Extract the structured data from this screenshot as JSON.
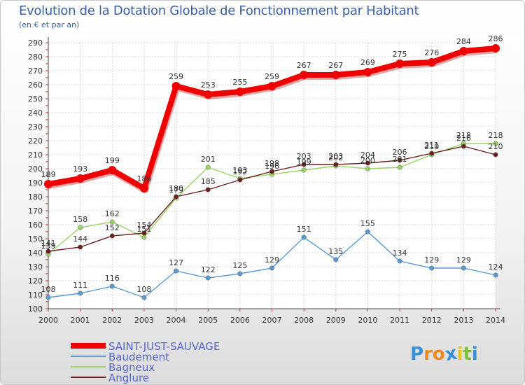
{
  "header": {
    "title": "Evolution de la Dotation Globale de Fonctionnement par Habitant",
    "subtitle": "(en € et par an)"
  },
  "logo": {
    "text": "Proxiti",
    "letters": [
      "P",
      "r",
      "o",
      "x",
      "i",
      "t",
      "i"
    ],
    "colors": [
      "#3a8fd9",
      "#f08a1c",
      "#f08a1c",
      "#3a8fd9",
      "#f0c21c",
      "#7fbf3f",
      "#3a8fd9"
    ]
  },
  "chart_data": {
    "type": "line",
    "title": "Evolution de la Dotation Globale de Fonctionnement par Habitant",
    "subtitle": "(en € et par an)",
    "xlabel": "",
    "ylabel": "",
    "x": [
      "2000",
      "2001",
      "2002",
      "2003",
      "2004",
      "2005",
      "2006",
      "2007",
      "2008",
      "2009",
      "2010",
      "2011",
      "2012",
      "2013",
      "2014"
    ],
    "ylim": [
      100,
      290
    ],
    "yticks": [
      100,
      110,
      120,
      130,
      140,
      150,
      160,
      170,
      180,
      190,
      200,
      210,
      220,
      230,
      240,
      250,
      260,
      270,
      280,
      290
    ],
    "grid": true,
    "legend_position": "bottom-left",
    "series": [
      {
        "name": "SAINT-JUST-SAUVAGE",
        "color": "#ee0000",
        "emphasis": true,
        "values": [
          189,
          193,
          199,
          186,
          259,
          253,
          255,
          259,
          267,
          267,
          269,
          275,
          276,
          284,
          286
        ]
      },
      {
        "name": "Baudement",
        "color": "#5b9bd5",
        "emphasis": false,
        "values": [
          108,
          111,
          116,
          108,
          127,
          122,
          125,
          129,
          151,
          135,
          155,
          134,
          129,
          129,
          124
        ]
      },
      {
        "name": "Bagneux",
        "color": "#9bd563",
        "emphasis": false,
        "values": [
          139,
          158,
          162,
          151,
          179,
          201,
          193,
          196,
          199,
          202,
          200,
          201,
          210,
          218,
          218
        ]
      },
      {
        "name": "Anglure",
        "color": "#6b1f1f",
        "emphasis": false,
        "values": [
          141,
          144,
          152,
          154,
          180,
          185,
          192,
          198,
          203,
          203,
          204,
          206,
          211,
          216,
          210
        ]
      }
    ],
    "point_labels": [
      [
        "189",
        "193",
        "199",
        "186",
        "259",
        "253",
        "255",
        "259",
        "267",
        "267",
        "269",
        "275",
        "276",
        "284",
        "286"
      ],
      [
        "108",
        "111",
        "116",
        "108",
        "127",
        "122",
        "125",
        "129",
        "151",
        "135",
        "155",
        "134",
        "129",
        "129",
        "124"
      ],
      [
        "139",
        "158",
        "162",
        "151",
        "179",
        "201",
        "193",
        "196",
        "199",
        "202",
        "200",
        "201",
        "210",
        "218",
        "218"
      ],
      [
        "141",
        "144",
        "152",
        "154",
        "180",
        "185",
        "192",
        "198",
        "203",
        "203",
        "204",
        "206",
        "211",
        "216",
        "210"
      ]
    ]
  }
}
